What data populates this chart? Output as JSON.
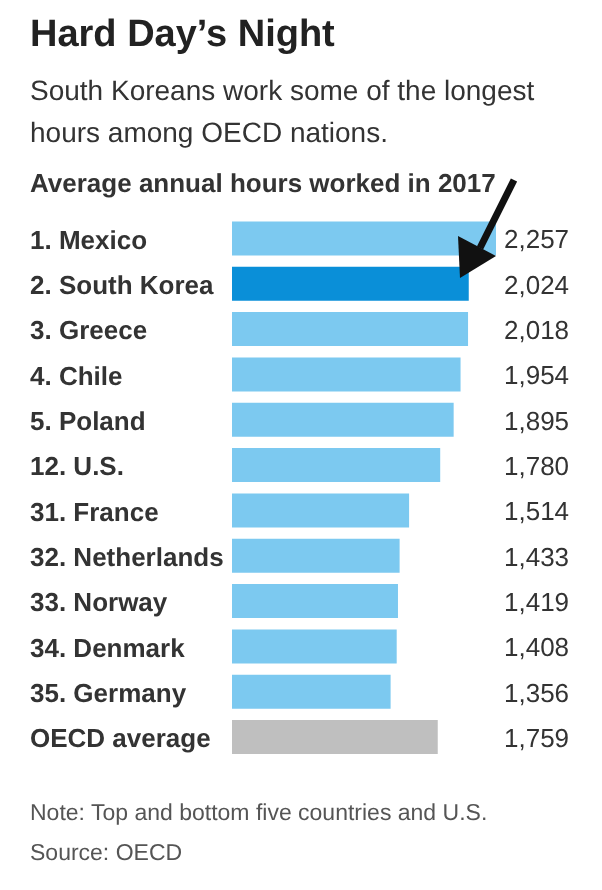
{
  "chart_data": {
    "type": "bar",
    "orientation": "horizontal",
    "title": "Hard Day’s Night",
    "subtitle": "South Koreans work some of the longest hours among OECD nations.",
    "annotations": [
      "Average annual hours worked in 2017",
      "Note: Top and bottom five countries and U.S.",
      "Source: OECD"
    ],
    "categories": [
      "1. Mexico",
      "2. South Korea",
      "3. Greece",
      "4. Chile",
      "5. Poland",
      "12. U.S.",
      "31. France",
      "32. Netherlands",
      "33. Norway",
      "34. Denmark",
      "35. Germany",
      "OECD average"
    ],
    "values": [
      2257,
      2024,
      2018,
      1954,
      1895,
      1780,
      1514,
      1433,
      1419,
      1408,
      1356,
      1759
    ],
    "value_labels": [
      "2,257",
      "2,024",
      "2,018",
      "1,954",
      "1,895",
      "1,780",
      "1,514",
      "1,433",
      "1,419",
      "1,408",
      "1,356",
      "1,759"
    ],
    "colors": [
      "#7cc9f0",
      "#0a8fd8",
      "#7cc9f0",
      "#7cc9f0",
      "#7cc9f0",
      "#7cc9f0",
      "#7cc9f0",
      "#7cc9f0",
      "#7cc9f0",
      "#7cc9f0",
      "#7cc9f0",
      "#bfbfbf"
    ]
  }
}
